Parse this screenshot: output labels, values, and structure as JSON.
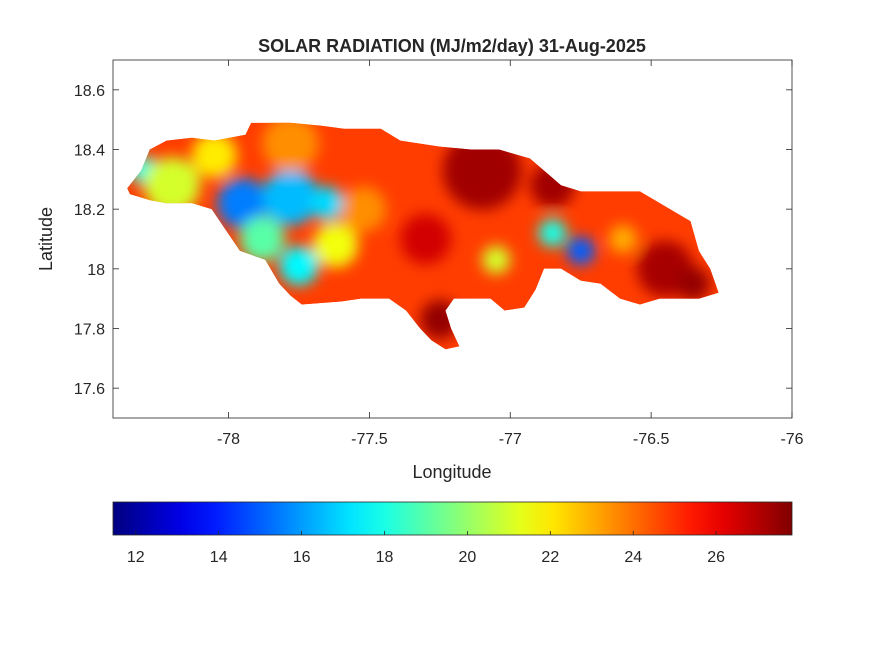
{
  "chart_data": {
    "type": "heatmap",
    "title": "SOLAR RADIATION (MJ/m2/day) 31-Aug-2025",
    "xlabel": "Longitude",
    "ylabel": "Latitude",
    "xlim": [
      -78.41,
      -76
    ],
    "ylim": [
      17.5,
      18.7
    ],
    "xticks": [
      -78,
      -77.5,
      -77,
      -76.5,
      -76
    ],
    "xtick_labels": [
      "-78",
      "-77.5",
      "-77",
      "-76.5",
      "-76"
    ],
    "yticks": [
      17.6,
      17.8,
      18,
      18.2,
      18.4,
      18.6
    ],
    "ytick_labels": [
      "17.6",
      "17.8",
      "18",
      "18.2",
      "18.4",
      "18.6"
    ],
    "colormap": "jet",
    "clim": [
      11.45,
      27.83
    ],
    "colorbar_ticks": [
      12,
      14,
      16,
      18,
      20,
      22,
      24,
      26
    ],
    "colorbar_tick_labels": [
      "12",
      "14",
      "16",
      "18",
      "20",
      "22",
      "24",
      "26"
    ],
    "colorbar_location": "southoutside",
    "base_value": 24.8,
    "outline": [
      [
        -78.36,
        18.27
      ],
      [
        -78.31,
        18.33
      ],
      [
        -78.28,
        18.4
      ],
      [
        -78.22,
        18.43
      ],
      [
        -78.13,
        18.44
      ],
      [
        -78.05,
        18.43
      ],
      [
        -77.94,
        18.45
      ],
      [
        -77.92,
        18.49
      ],
      [
        -77.78,
        18.49
      ],
      [
        -77.67,
        18.48
      ],
      [
        -77.59,
        18.47
      ],
      [
        -77.46,
        18.47
      ],
      [
        -77.39,
        18.43
      ],
      [
        -77.25,
        18.41
      ],
      [
        -77.14,
        18.4
      ],
      [
        -77.04,
        18.4
      ],
      [
        -76.93,
        18.37
      ],
      [
        -76.82,
        18.28
      ],
      [
        -76.75,
        18.26
      ],
      [
        -76.54,
        18.26
      ],
      [
        -76.36,
        18.16
      ],
      [
        -76.33,
        18.06
      ],
      [
        -76.29,
        18.0
      ],
      [
        -76.26,
        17.92
      ],
      [
        -76.33,
        17.9
      ],
      [
        -76.47,
        17.9
      ],
      [
        -76.54,
        17.88
      ],
      [
        -76.61,
        17.9
      ],
      [
        -76.68,
        17.95
      ],
      [
        -76.75,
        17.96
      ],
      [
        -76.82,
        18.0
      ],
      [
        -76.88,
        18.0
      ],
      [
        -76.91,
        17.93
      ],
      [
        -76.95,
        17.87
      ],
      [
        -77.02,
        17.86
      ],
      [
        -77.07,
        17.9
      ],
      [
        -77.14,
        17.9
      ],
      [
        -77.2,
        17.9
      ],
      [
        -77.23,
        17.86
      ],
      [
        -77.21,
        17.8
      ],
      [
        -77.18,
        17.74
      ],
      [
        -77.23,
        17.73
      ],
      [
        -77.28,
        17.76
      ],
      [
        -77.32,
        17.8
      ],
      [
        -77.37,
        17.86
      ],
      [
        -77.43,
        17.9
      ],
      [
        -77.48,
        17.9
      ],
      [
        -77.53,
        17.9
      ],
      [
        -77.6,
        17.89
      ],
      [
        -77.74,
        17.88
      ],
      [
        -77.78,
        17.91
      ],
      [
        -77.82,
        17.95
      ],
      [
        -77.87,
        18.03
      ],
      [
        -77.96,
        18.06
      ],
      [
        -78.01,
        18.13
      ],
      [
        -78.06,
        18.2
      ],
      [
        -78.13,
        18.22
      ],
      [
        -78.22,
        18.22
      ],
      [
        -78.28,
        18.23
      ],
      [
        -78.35,
        18.25
      ]
    ],
    "field_samples": [
      {
        "lon": -77.95,
        "lat": 18.22,
        "value": 15.5,
        "r": 0.09
      },
      {
        "lon": -77.78,
        "lat": 18.24,
        "value": 16.5,
        "r": 0.1
      },
      {
        "lon": -77.65,
        "lat": 18.22,
        "value": 17,
        "r": 0.06
      },
      {
        "lon": -77.75,
        "lat": 18.01,
        "value": 17.5,
        "r": 0.07
      },
      {
        "lon": -77.88,
        "lat": 18.1,
        "value": 19,
        "r": 0.08
      },
      {
        "lon": -78.3,
        "lat": 18.33,
        "value": 18,
        "r": 0.05
      },
      {
        "lon": -78.2,
        "lat": 18.28,
        "value": 21,
        "r": 0.1
      },
      {
        "lon": -78.05,
        "lat": 18.38,
        "value": 22,
        "r": 0.08
      },
      {
        "lon": -77.62,
        "lat": 18.08,
        "value": 21.5,
        "r": 0.08
      },
      {
        "lon": -77.52,
        "lat": 18.2,
        "value": 23.5,
        "r": 0.08
      },
      {
        "lon": -77.78,
        "lat": 18.42,
        "value": 23.5,
        "r": 0.1
      },
      {
        "lon": -77.1,
        "lat": 18.33,
        "value": 27.3,
        "r": 0.14
      },
      {
        "lon": -76.85,
        "lat": 18.28,
        "value": 27.3,
        "r": 0.08
      },
      {
        "lon": -77.25,
        "lat": 17.83,
        "value": 27.5,
        "r": 0.07
      },
      {
        "lon": -76.45,
        "lat": 18.0,
        "value": 27.2,
        "r": 0.1
      },
      {
        "lon": -76.35,
        "lat": 17.95,
        "value": 27.5,
        "r": 0.06
      },
      {
        "lon": -77.3,
        "lat": 18.1,
        "value": 26.5,
        "r": 0.09
      },
      {
        "lon": -76.75,
        "lat": 18.06,
        "value": 15,
        "r": 0.05
      },
      {
        "lon": -76.85,
        "lat": 18.12,
        "value": 18,
        "r": 0.05
      },
      {
        "lon": -77.05,
        "lat": 18.03,
        "value": 21,
        "r": 0.05
      },
      {
        "lon": -76.6,
        "lat": 18.1,
        "value": 23,
        "r": 0.05
      }
    ]
  }
}
